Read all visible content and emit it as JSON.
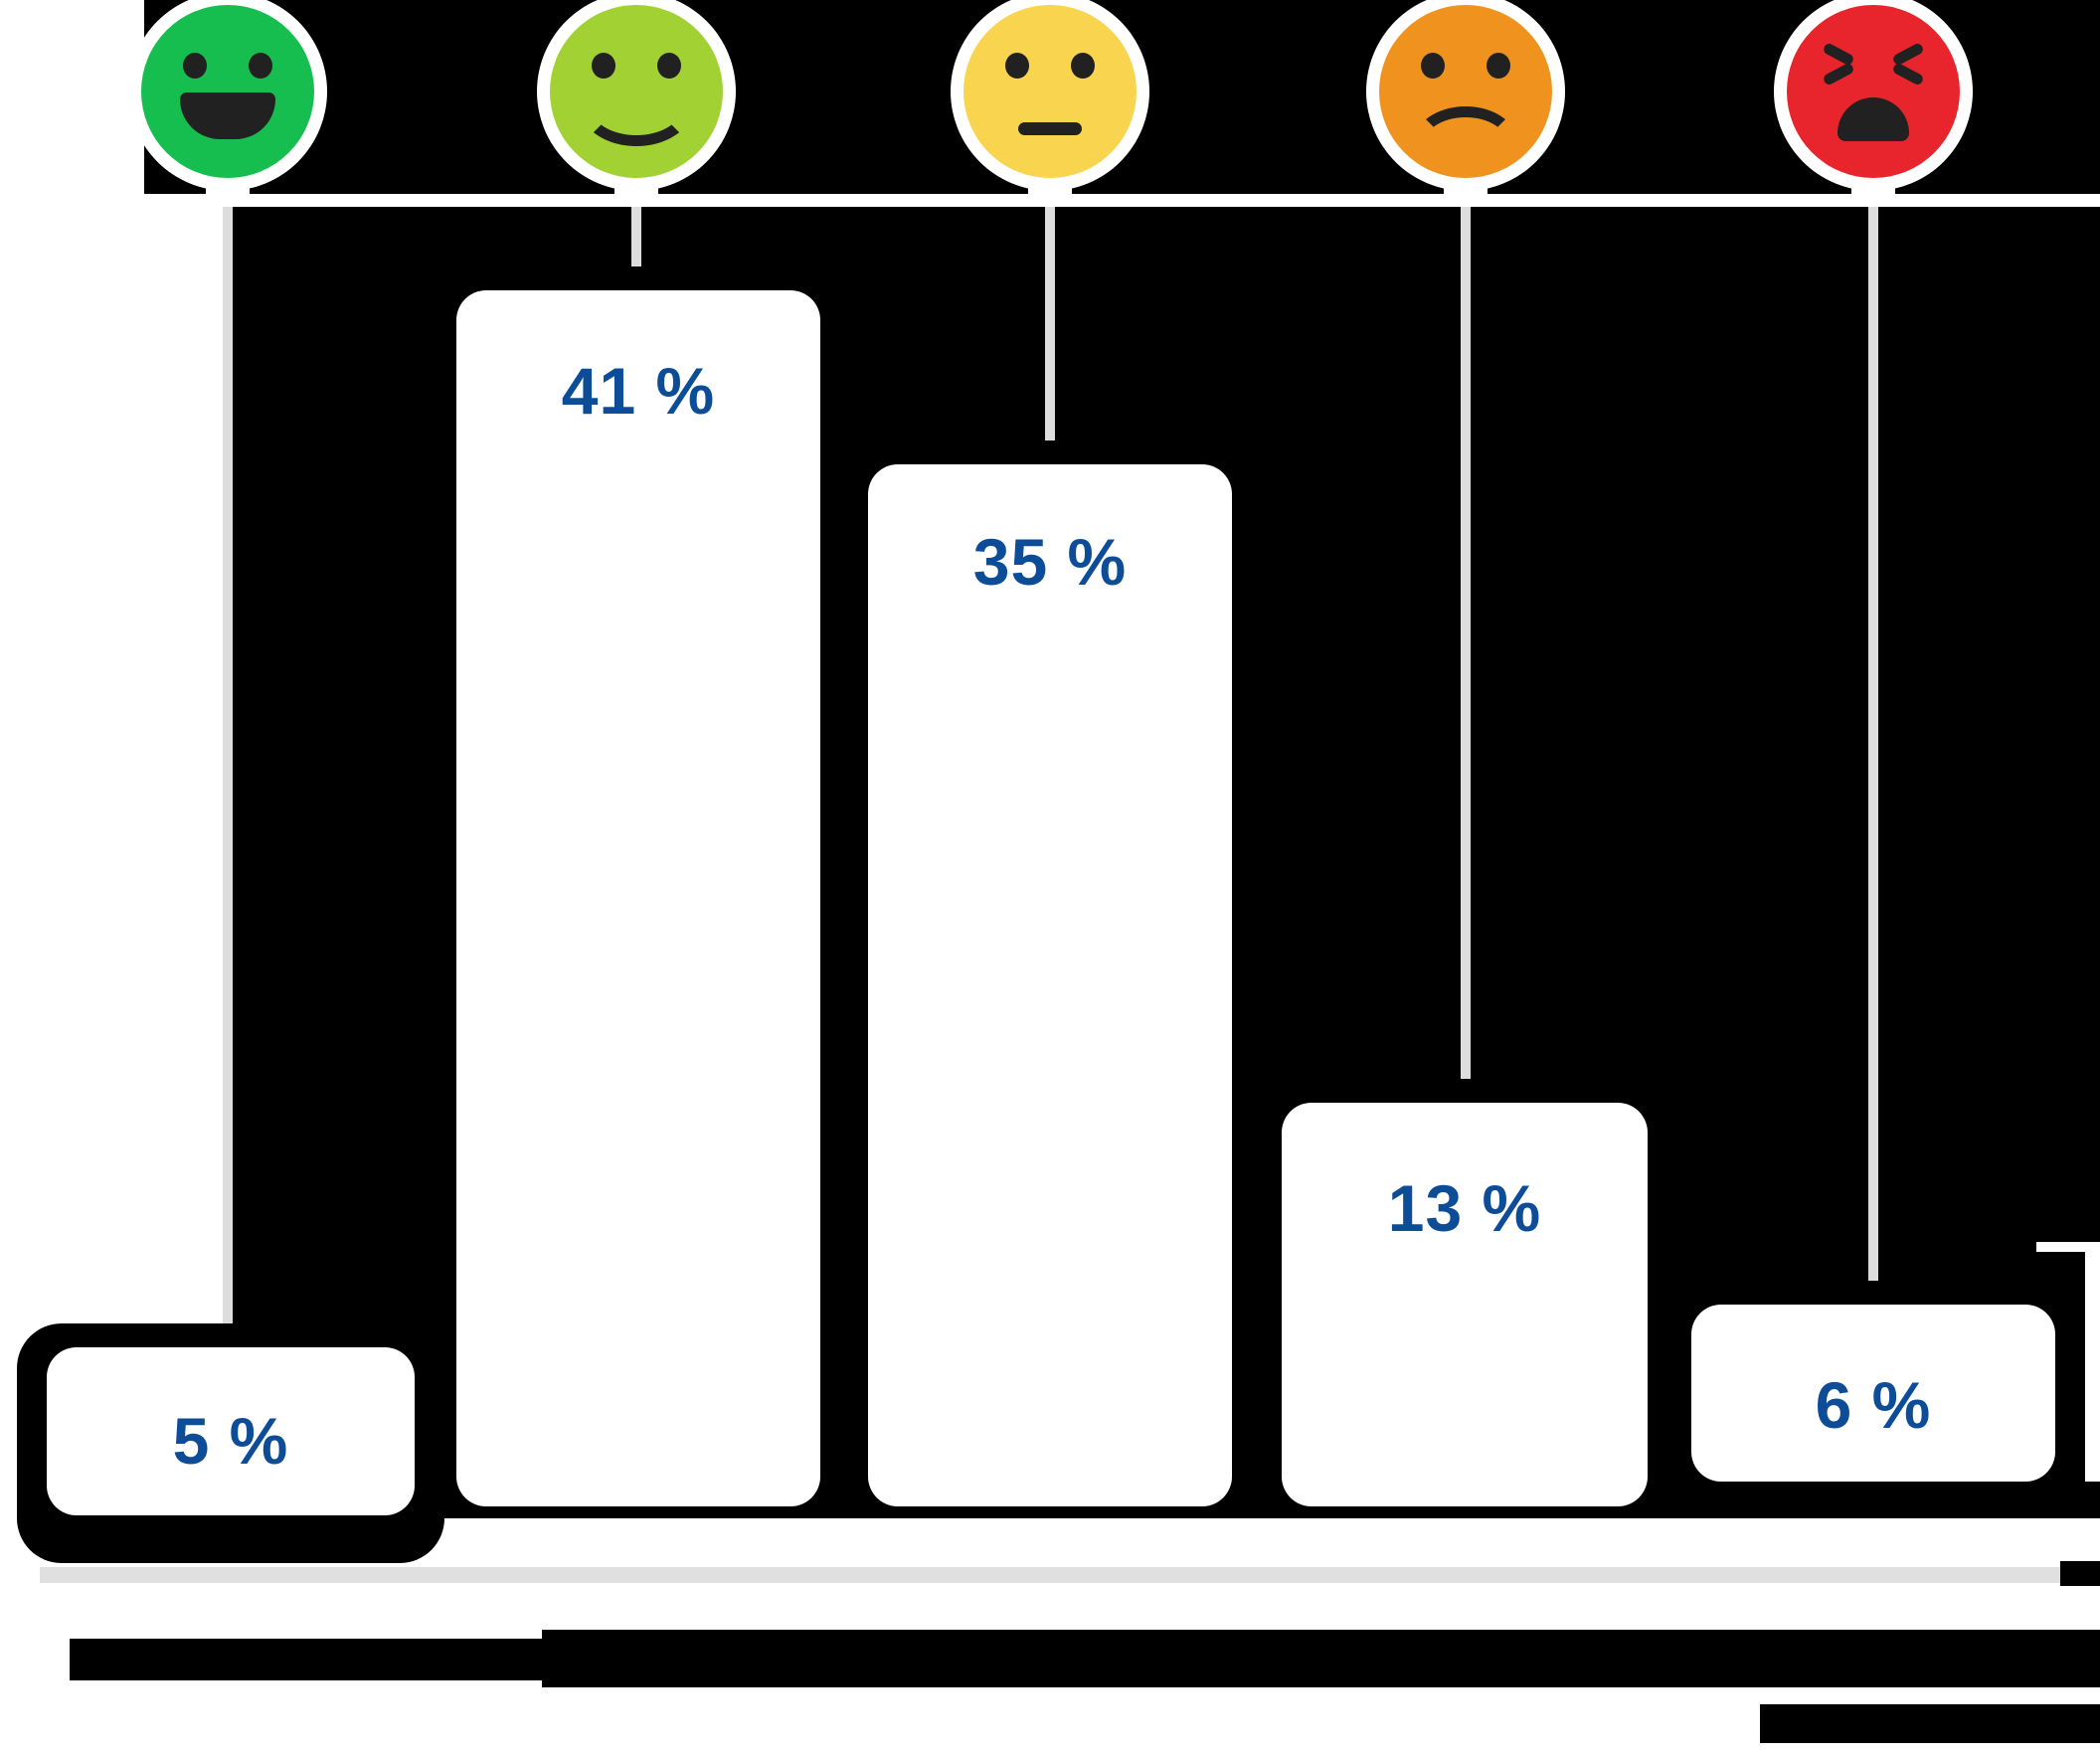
{
  "chart_data": {
    "type": "bar",
    "orientation": "vertical",
    "title": "",
    "categories": [
      "very-happy",
      "happy",
      "neutral",
      "unhappy",
      "angry"
    ],
    "values": [
      5,
      41,
      35,
      13,
      6
    ],
    "unit": "%",
    "value_labels": [
      "5 %",
      "41 %",
      "35 %",
      "13 %",
      "6 %"
    ],
    "xlabel": "",
    "ylabel": "",
    "grid": false,
    "legend": "none",
    "axis_ticks": "none (values shown as labels inside bars, categories shown as emoji icons)"
  },
  "bars": [
    {
      "emoji": "grinning-face",
      "face": "grin",
      "color": "#16be50",
      "label": "5 %",
      "value": 5
    },
    {
      "emoji": "smiling-face",
      "face": "smile",
      "color": "#a2d134",
      "label": "41 %",
      "value": 41
    },
    {
      "emoji": "neutral-face",
      "face": "neutral",
      "color": "#f9d44f",
      "label": "35 %",
      "value": 35
    },
    {
      "emoji": "frowning-face",
      "face": "frown",
      "color": "#f0931e",
      "label": "13 %",
      "value": 13
    },
    {
      "emoji": "angry-face",
      "face": "angry",
      "color": "#e8242c",
      "label": "6 %",
      "value": 6
    }
  ],
  "colors": {
    "plot_background": "#000000",
    "page_background": "#ffffff",
    "bar_fill": "#ffffff",
    "bar_label_text": "#0d4d98",
    "connector_line": "#dddddd",
    "divider_line": "#e0e0e0",
    "face_features": "#212121",
    "redacted_blocks": "#000000"
  }
}
